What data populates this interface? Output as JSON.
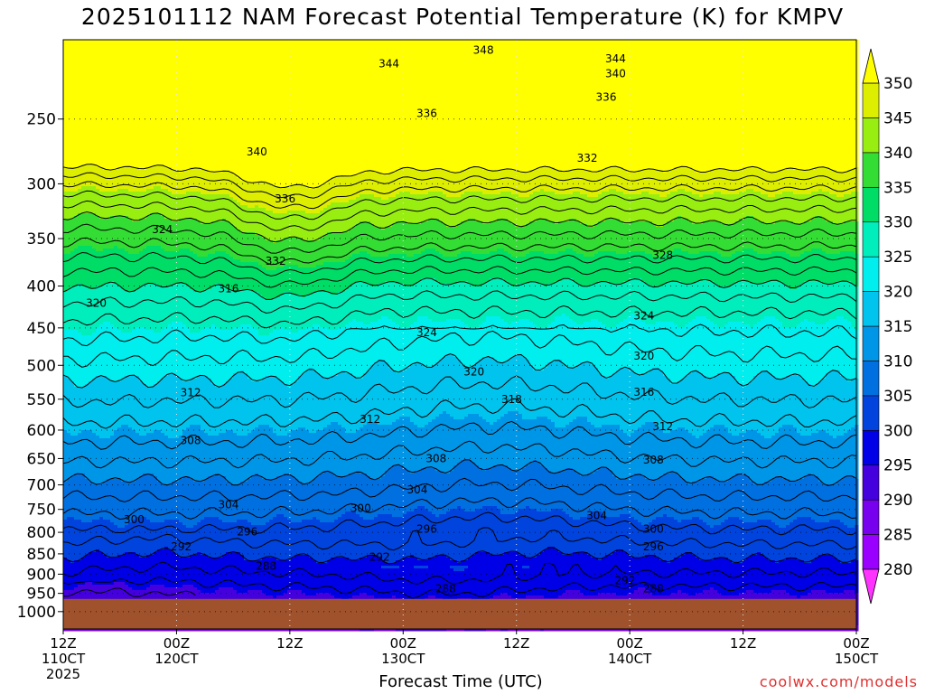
{
  "title": "2025101112 NAM Forecast Potential Temperature (K) for KMPV",
  "credit": "coolwx.com/models",
  "chart_data": {
    "type": "contour",
    "title": "2025101112 NAM Forecast Potential Temperature (K) for KMPV",
    "xlabel": "Forecast Time (UTC)",
    "ylabel": "",
    "y_axis": {
      "scale": "log",
      "inverted": true,
      "range": [
        1050,
        200
      ],
      "ticks": [
        250,
        300,
        350,
        400,
        450,
        500,
        550,
        600,
        650,
        700,
        750,
        800,
        850,
        900,
        950,
        1000
      ]
    },
    "x_axis": {
      "range_hours": [
        0,
        84
      ],
      "ticks": [
        {
          "hour": 0,
          "line1": "12Z",
          "line2": "110CT",
          "line3": "2025"
        },
        {
          "hour": 12,
          "line1": "00Z",
          "line2": "120CT",
          "line3": ""
        },
        {
          "hour": 24,
          "line1": "12Z",
          "line2": "",
          "line3": ""
        },
        {
          "hour": 36,
          "line1": "00Z",
          "line2": "130CT",
          "line3": ""
        },
        {
          "hour": 48,
          "line1": "12Z",
          "line2": "",
          "line3": ""
        },
        {
          "hour": 60,
          "line1": "00Z",
          "line2": "140CT",
          "line3": ""
        },
        {
          "hour": 72,
          "line1": "12Z",
          "line2": "",
          "line3": ""
        },
        {
          "hour": 84,
          "line1": "00Z",
          "line2": "150CT",
          "line3": ""
        }
      ]
    },
    "grid": true,
    "colorbar": {
      "placement": "right",
      "levels": [
        280,
        285,
        290,
        295,
        300,
        305,
        310,
        315,
        320,
        325,
        330,
        335,
        340,
        345,
        350
      ],
      "colors": [
        "#ff33ff",
        "#9900ff",
        "#7700ee",
        "#4400dd",
        "#0000e6",
        "#0044dd",
        "#0070e0",
        "#0096e8",
        "#00c4ee",
        "#00eeee",
        "#00eebb",
        "#00dd66",
        "#33dd33",
        "#99ee11",
        "#ddee00",
        "#ffff00"
      ]
    },
    "ground_color": "#a0522d",
    "contour_labels": [
      {
        "text": "348",
        "hour": 44.5,
        "p": 206
      },
      {
        "text": "344",
        "hour": 34.5,
        "p": 214
      },
      {
        "text": "344",
        "hour": 58.5,
        "p": 211
      },
      {
        "text": "340",
        "hour": 58.5,
        "p": 220
      },
      {
        "text": "336",
        "hour": 57.5,
        "p": 235
      },
      {
        "text": "336",
        "hour": 38.5,
        "p": 246
      },
      {
        "text": "340",
        "hour": 20.5,
        "p": 274
      },
      {
        "text": "332",
        "hour": 55.5,
        "p": 279
      },
      {
        "text": "336",
        "hour": 23.5,
        "p": 313
      },
      {
        "text": "324",
        "hour": 10.5,
        "p": 341
      },
      {
        "text": "328",
        "hour": 63.5,
        "p": 367
      },
      {
        "text": "332",
        "hour": 22.5,
        "p": 373
      },
      {
        "text": "316",
        "hour": 17.5,
        "p": 403
      },
      {
        "text": "320",
        "hour": 3.5,
        "p": 420
      },
      {
        "text": "324",
        "hour": 61.5,
        "p": 435
      },
      {
        "text": "324",
        "hour": 38.5,
        "p": 456
      },
      {
        "text": "320",
        "hour": 61.5,
        "p": 487
      },
      {
        "text": "320",
        "hour": 43.5,
        "p": 509
      },
      {
        "text": "312",
        "hour": 13.5,
        "p": 540
      },
      {
        "text": "316",
        "hour": 61.5,
        "p": 539
      },
      {
        "text": "318",
        "hour": 47.5,
        "p": 550
      },
      {
        "text": "312",
        "hour": 32.5,
        "p": 582
      },
      {
        "text": "312",
        "hour": 63.5,
        "p": 594
      },
      {
        "text": "308",
        "hour": 13.5,
        "p": 618
      },
      {
        "text": "308",
        "hour": 39.5,
        "p": 650
      },
      {
        "text": "308",
        "hour": 62.5,
        "p": 653
      },
      {
        "text": "304",
        "hour": 37.5,
        "p": 710
      },
      {
        "text": "304",
        "hour": 17.5,
        "p": 740
      },
      {
        "text": "300",
        "hour": 31.5,
        "p": 748
      },
      {
        "text": "304",
        "hour": 56.5,
        "p": 763
      },
      {
        "text": "300",
        "hour": 7.5,
        "p": 772
      },
      {
        "text": "296",
        "hour": 19.5,
        "p": 799
      },
      {
        "text": "296",
        "hour": 38.5,
        "p": 793
      },
      {
        "text": "300",
        "hour": 62.5,
        "p": 793
      },
      {
        "text": "292",
        "hour": 12.5,
        "p": 833
      },
      {
        "text": "296",
        "hour": 62.5,
        "p": 833
      },
      {
        "text": "292",
        "hour": 33.5,
        "p": 858
      },
      {
        "text": "288",
        "hour": 21.5,
        "p": 880
      },
      {
        "text": "292",
        "hour": 59.5,
        "p": 916
      },
      {
        "text": "288",
        "hour": 40.5,
        "p": 938
      },
      {
        "text": "288",
        "hour": 62.5,
        "p": 938
      }
    ]
  }
}
